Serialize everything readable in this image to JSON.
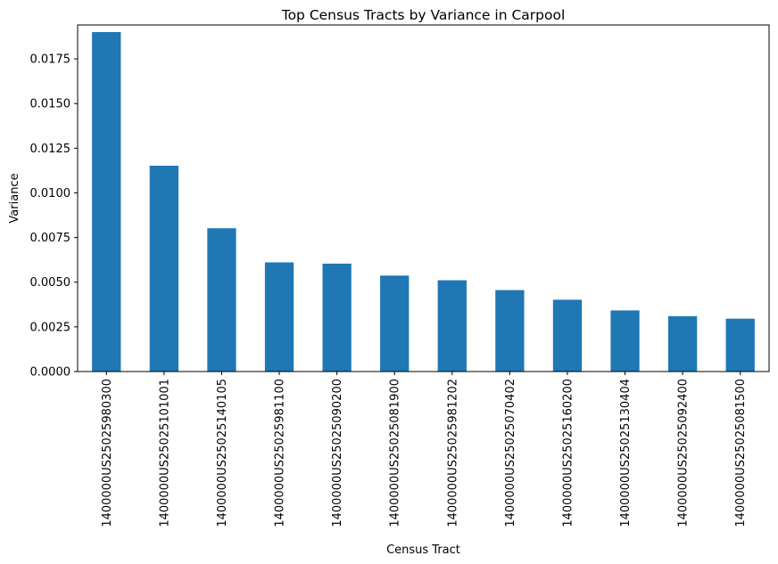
{
  "chart_data": {
    "type": "bar",
    "title": "Top Census Tracts by Variance in Carpool",
    "xlabel": "Census Tract",
    "ylabel": "Variance",
    "categories": [
      "1400000US25025980300",
      "1400000US25025101001",
      "1400000US25025140105",
      "1400000US25025981100",
      "1400000US25025090200",
      "1400000US25025081900",
      "1400000US25025981202",
      "1400000US25025070402",
      "1400000US25025160200",
      "1400000US25025130404",
      "1400000US25025092400",
      "1400000US25025081500"
    ],
    "values": [
      0.019,
      0.01152,
      0.00802,
      0.00611,
      0.00604,
      0.00537,
      0.00511,
      0.00456,
      0.00402,
      0.00342,
      0.0031,
      0.00296
    ],
    "ylim": [
      0,
      0.019
    ],
    "yticks": [
      "0.0000",
      "0.0025",
      "0.0050",
      "0.0075",
      "0.0100",
      "0.0125",
      "0.0150",
      "0.0175"
    ],
    "bar_color": "#1f77b4",
    "grid": false,
    "legend": "none"
  }
}
